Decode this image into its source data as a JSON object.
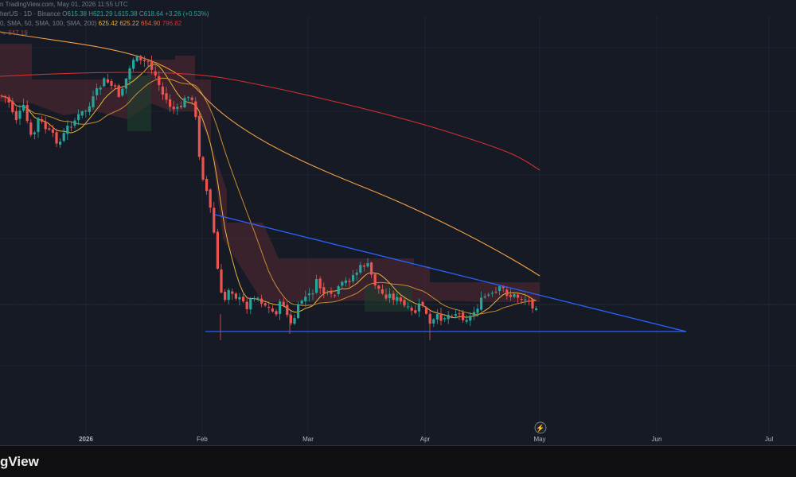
{
  "header": {
    "source_line": "n TradingView.com, May 01, 2026 11:55 UTC",
    "symbol_line_prefix": "herUS · 1D · Binance",
    "o_label": "O",
    "o_value": "615.38",
    "h_label": "H",
    "h_value": "621.29",
    "l_label": "L",
    "l_value": "615.38",
    "c_label": "C",
    "c_value": "618.64",
    "change": "+3.26 (+0.53%)",
    "ma_line_prefix": "0, SMA, 50, SMA, 100, SMA, 200)",
    "ma_values": [
      "625.42",
      "625.22",
      "654.90",
      "796.82"
    ],
    "extra_value": "647.19"
  },
  "x_axis": {
    "ticks": [
      {
        "label": "2026",
        "bold": true
      },
      {
        "label": "Feb",
        "bold": false
      },
      {
        "label": "Mar",
        "bold": false
      },
      {
        "label": "Apr",
        "bold": false
      },
      {
        "label": "May",
        "bold": false
      },
      {
        "label": "Jun",
        "bold": false
      },
      {
        "label": "Jul",
        "bold": false
      }
    ]
  },
  "footer": {
    "brand": "gView"
  },
  "colors": {
    "background": "#161a25",
    "up": "#26a69a",
    "down": "#ef5350",
    "sma_20": "#e8b63a",
    "sma_50": "#f2a043",
    "sma_100": "#e0633a",
    "sma_200": "#d32f2f",
    "trendline": "#2962ff",
    "cloud_red": "#5a2a33",
    "cloud_green": "#1f3b2c"
  },
  "chart_data": {
    "type": "candlestick",
    "symbol_partial": "herUS",
    "timeframe": "1D",
    "exchange": "Binance",
    "last_candle": {
      "open": 615.38,
      "high": 621.29,
      "low": 615.38,
      "close": 618.64,
      "change": 3.26,
      "change_pct": 0.53
    },
    "moving_averages": [
      {
        "name": "SMA",
        "value": 625.42
      },
      {
        "name": "SMA",
        "value": 625.22
      },
      {
        "name": "SMA",
        "value": 654.9
      },
      {
        "name": "SMA",
        "value": 796.82
      }
    ],
    "extra_indicator_value": 647.19,
    "x_ticks": [
      "2026",
      "Feb",
      "Mar",
      "Apr",
      "May",
      "Jun",
      "Jul"
    ],
    "patterns": [
      "descending triangle"
    ]
  }
}
